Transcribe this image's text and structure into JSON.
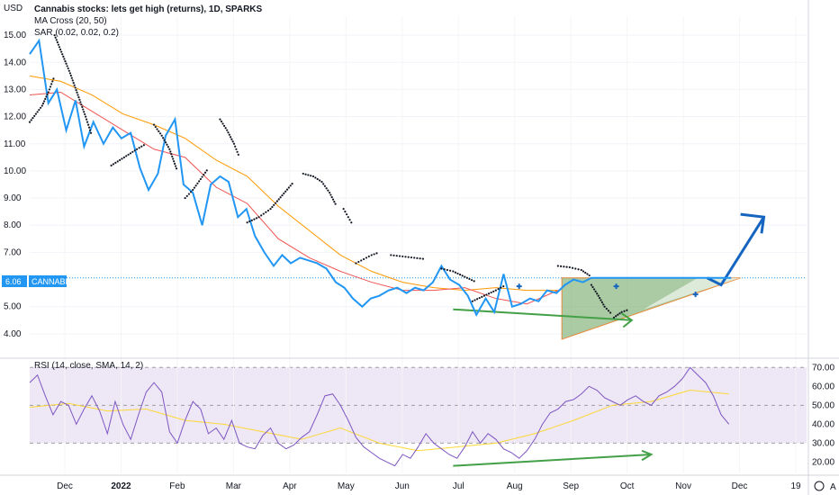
{
  "chart_data": {
    "type": "line",
    "title": "Cannabis stocks: lets get high (returns), 1D, SPARKS",
    "legend": {
      "ma_cross": "MA Cross (20, 50)",
      "sar": "SAR (0.02, 0.02, 0.2)",
      "rsi": "RSI (14, close, SMA, 14, 2)"
    },
    "currency": "USD",
    "price_tag": {
      "label": "6.06",
      "name": "CANNABIS",
      "value": 6.06
    },
    "x_ticks": [
      "Dec",
      "2022",
      "Feb",
      "Mar",
      "Apr",
      "May",
      "Jun",
      "Jul",
      "Aug",
      "Sep",
      "Oct",
      "Nov",
      "Dec",
      "19"
    ],
    "y_ticks": [
      "15.00",
      "14.00",
      "13.00",
      "12.00",
      "11.00",
      "10.00",
      "9.00",
      "8.00",
      "7.00",
      "5.00",
      "4.00"
    ],
    "y_range": [
      3.3,
      15.7
    ],
    "rsi_ticks": [
      "70.00",
      "60.00",
      "50.00",
      "40.00",
      "30.00",
      "20.00"
    ],
    "rsi_range": [
      14,
      73
    ],
    "rsi_bands": [
      30,
      50,
      70
    ],
    "x_range": [
      0,
      100
    ],
    "price": {
      "name": "CANNABIS",
      "color": "#2196f3",
      "x": [
        0,
        1.2,
        2.4,
        3.5,
        4.7,
        5.9,
        7,
        8.2,
        9.5,
        10.7,
        11.8,
        13,
        14.2,
        15.3,
        16.5,
        17.5,
        18.7,
        19.8,
        21,
        22.2,
        23.3,
        24.5,
        25.6,
        26.8,
        27.9,
        29,
        30.2,
        31.4,
        32.5,
        33.6,
        34.8,
        35.9,
        37,
        38.2,
        39.4,
        40.5,
        41.6,
        42.8,
        43.9,
        45,
        46.2,
        47.3,
        48.5,
        49.6,
        50.7,
        51.9,
        53,
        54.1,
        55.3,
        56.4,
        57.5,
        58.7,
        59.8,
        61,
        62.1,
        63.2,
        64.4,
        65.5,
        66.6,
        67.8,
        68.9,
        70,
        71.2,
        72.3,
        73.4,
        74.6,
        75.7,
        76.8,
        78,
        79.1,
        80.2,
        81.4,
        82.5,
        83.6,
        84.8,
        85.9,
        87.5,
        89,
        90.3
      ],
      "y": [
        14.3,
        14.8,
        12.5,
        13.0,
        11.5,
        12.6,
        10.9,
        11.8,
        11.0,
        11.6,
        11.2,
        11.4,
        10.1,
        9.3,
        9.9,
        11.3,
        11.9,
        9.5,
        9.2,
        8.0,
        9.5,
        9.8,
        9.6,
        8.3,
        8.6,
        7.6,
        7.0,
        6.5,
        6.9,
        6.6,
        6.8,
        6.7,
        6.6,
        6.4,
        5.9,
        5.7,
        5.3,
        5.0,
        5.3,
        5.4,
        5.6,
        5.7,
        5.5,
        5.7,
        5.6,
        5.9,
        6.5,
        6.0,
        5.8,
        5.4,
        4.7,
        5.3,
        4.8,
        6.2,
        5.0,
        5.1,
        5.3,
        5.2,
        5.6,
        5.5,
        5.8,
        6.0,
        5.9,
        6.06,
        6.06,
        6.06,
        6.06,
        6.06,
        6.06,
        6.06,
        6.06,
        6.06,
        6.06,
        6.06,
        6.06,
        6.06,
        6.06,
        6.06,
        6.06
      ]
    },
    "ma20": {
      "name": "MA 20",
      "color": "#ef5350",
      "x": [
        0,
        4,
        8,
        12,
        16,
        20,
        24,
        28,
        32,
        36,
        40,
        44,
        48,
        52,
        56,
        60,
        64,
        68
      ],
      "y": [
        12.8,
        12.9,
        12.2,
        11.5,
        10.8,
        10.5,
        9.4,
        8.8,
        7.5,
        6.8,
        6.3,
        5.9,
        5.6,
        5.6,
        5.7,
        5.3,
        5.1,
        5.6
      ]
    },
    "ma50": {
      "name": "MA 50",
      "color": "#ff9800",
      "x": [
        0,
        4,
        8,
        12,
        16,
        20,
        24,
        28,
        32,
        36,
        40,
        44,
        48,
        52,
        56,
        60,
        64,
        68
      ],
      "y": [
        13.5,
        13.3,
        12.8,
        12.1,
        11.7,
        11.2,
        10.4,
        9.8,
        8.7,
        7.8,
        6.9,
        6.3,
        5.9,
        5.7,
        5.6,
        5.7,
        5.6,
        5.6
      ]
    },
    "sar_segments": [
      {
        "x": [
          0,
          0.8,
          1.6,
          2.4,
          3.2
        ],
        "y": [
          11.8,
          12.1,
          12.4,
          12.9,
          13.5
        ]
      },
      {
        "x": [
          3.2,
          4.2,
          5.2,
          6.2,
          7.2,
          8.0
        ],
        "y": [
          15.0,
          14.3,
          13.6,
          12.8,
          12.0,
          11.3
        ]
      },
      {
        "x": [
          10.5,
          11.6,
          12.7,
          13.8,
          15.0
        ],
        "y": [
          10.2,
          10.4,
          10.6,
          10.8,
          11.0
        ]
      },
      {
        "x": [
          16.0,
          17.0,
          18.0,
          19.0
        ],
        "y": [
          11.7,
          11.3,
          10.8,
          10.0
        ]
      },
      {
        "x": [
          20.0,
          21.0,
          22.0,
          23.0
        ],
        "y": [
          9.0,
          9.3,
          9.7,
          10.1
        ]
      },
      {
        "x": [
          24.5,
          25.4,
          26.3,
          27.0
        ],
        "y": [
          11.9,
          11.5,
          11.0,
          10.5
        ]
      },
      {
        "x": [
          28.0,
          29.5,
          31.0,
          32.5,
          34.0
        ],
        "y": [
          8.1,
          8.3,
          8.6,
          9.1,
          9.6
        ]
      },
      {
        "x": [
          35.2,
          36.5,
          37.6,
          38.6,
          39.5
        ],
        "y": [
          9.9,
          9.8,
          9.6,
          9.2,
          8.7
        ]
      },
      {
        "x": [
          40.4,
          41.0,
          41.6
        ],
        "y": [
          8.6,
          8.3,
          8.0
        ]
      },
      {
        "x": [
          42.0,
          43.0,
          44.0,
          45.0
        ],
        "y": [
          6.6,
          6.75,
          6.9,
          7.0
        ]
      },
      {
        "x": [
          46.5,
          48.0,
          49.5,
          51.0
        ],
        "y": [
          6.9,
          6.85,
          6.8,
          6.75
        ]
      },
      {
        "x": [
          53.0,
          54.5,
          56.0,
          57.5
        ],
        "y": [
          6.4,
          6.3,
          6.1,
          5.9
        ]
      },
      {
        "x": [
          57.0,
          58.5,
          60.0,
          61.3
        ],
        "y": [
          5.2,
          5.4,
          5.6,
          5.8
        ]
      },
      {
        "x": [
          68.0,
          69.5,
          71.0,
          72.3
        ],
        "y": [
          6.5,
          6.45,
          6.35,
          6.1
        ]
      },
      {
        "x": [
          72.3,
          73.2,
          74.0,
          75.0
        ],
        "y": [
          5.8,
          5.4,
          5.0,
          4.7
        ]
      },
      {
        "x": [
          75.2,
          76.2,
          77.2
        ],
        "y": [
          4.6,
          4.8,
          4.9
        ]
      }
    ],
    "rsi": {
      "name": "RSI",
      "color": "#7e57c2",
      "x": [
        0,
        1,
        2,
        3,
        4,
        5,
        6,
        7,
        8,
        9,
        10,
        11,
        12,
        13,
        14,
        15,
        16,
        17,
        18,
        19,
        20,
        21,
        22,
        23,
        24,
        25,
        26,
        27,
        28,
        29,
        30,
        31,
        32,
        33,
        34,
        35,
        36,
        37,
        38,
        39,
        40,
        41,
        42,
        43,
        44,
        45,
        46,
        47,
        48,
        49,
        50,
        51,
        52,
        53,
        54,
        55,
        56,
        57,
        58,
        59,
        60,
        61,
        62,
        63,
        64,
        65,
        66,
        67,
        68,
        69,
        70,
        71,
        72,
        73,
        74,
        75,
        76,
        77,
        78,
        79,
        80,
        81,
        82,
        83,
        84,
        85,
        86,
        87,
        88,
        89,
        90
      ],
      "y": [
        62,
        66,
        55,
        45,
        52,
        50,
        40,
        48,
        55,
        47,
        35,
        52,
        40,
        32,
        45,
        57,
        62,
        57,
        36,
        30,
        42,
        52,
        48,
        35,
        38,
        32,
        42,
        30,
        28,
        27,
        34,
        38,
        30,
        27,
        29,
        33,
        36,
        45,
        55,
        56,
        50,
        42,
        33,
        28,
        25,
        22,
        20,
        18,
        24,
        22,
        28,
        35,
        30,
        27,
        24,
        22,
        28,
        36,
        30,
        35,
        32,
        27,
        25,
        22,
        26,
        32,
        40,
        46,
        48,
        52,
        53,
        56,
        60,
        58,
        54,
        52,
        50,
        53,
        55,
        52,
        50,
        55,
        57,
        60,
        64,
        70,
        66,
        62,
        55,
        45,
        40
      ]
    },
    "rsi_ma": {
      "name": "RSI-based MA",
      "color": "#fdd835",
      "x": [
        0,
        5,
        10,
        15,
        20,
        25,
        30,
        35,
        40,
        45,
        50,
        55,
        60,
        65,
        70,
        75,
        80,
        85,
        90
      ],
      "y": [
        49,
        51,
        47,
        48,
        42,
        40,
        36,
        32,
        38,
        30,
        26,
        28,
        30,
        35,
        42,
        50,
        52,
        58,
        56
      ]
    }
  }
}
